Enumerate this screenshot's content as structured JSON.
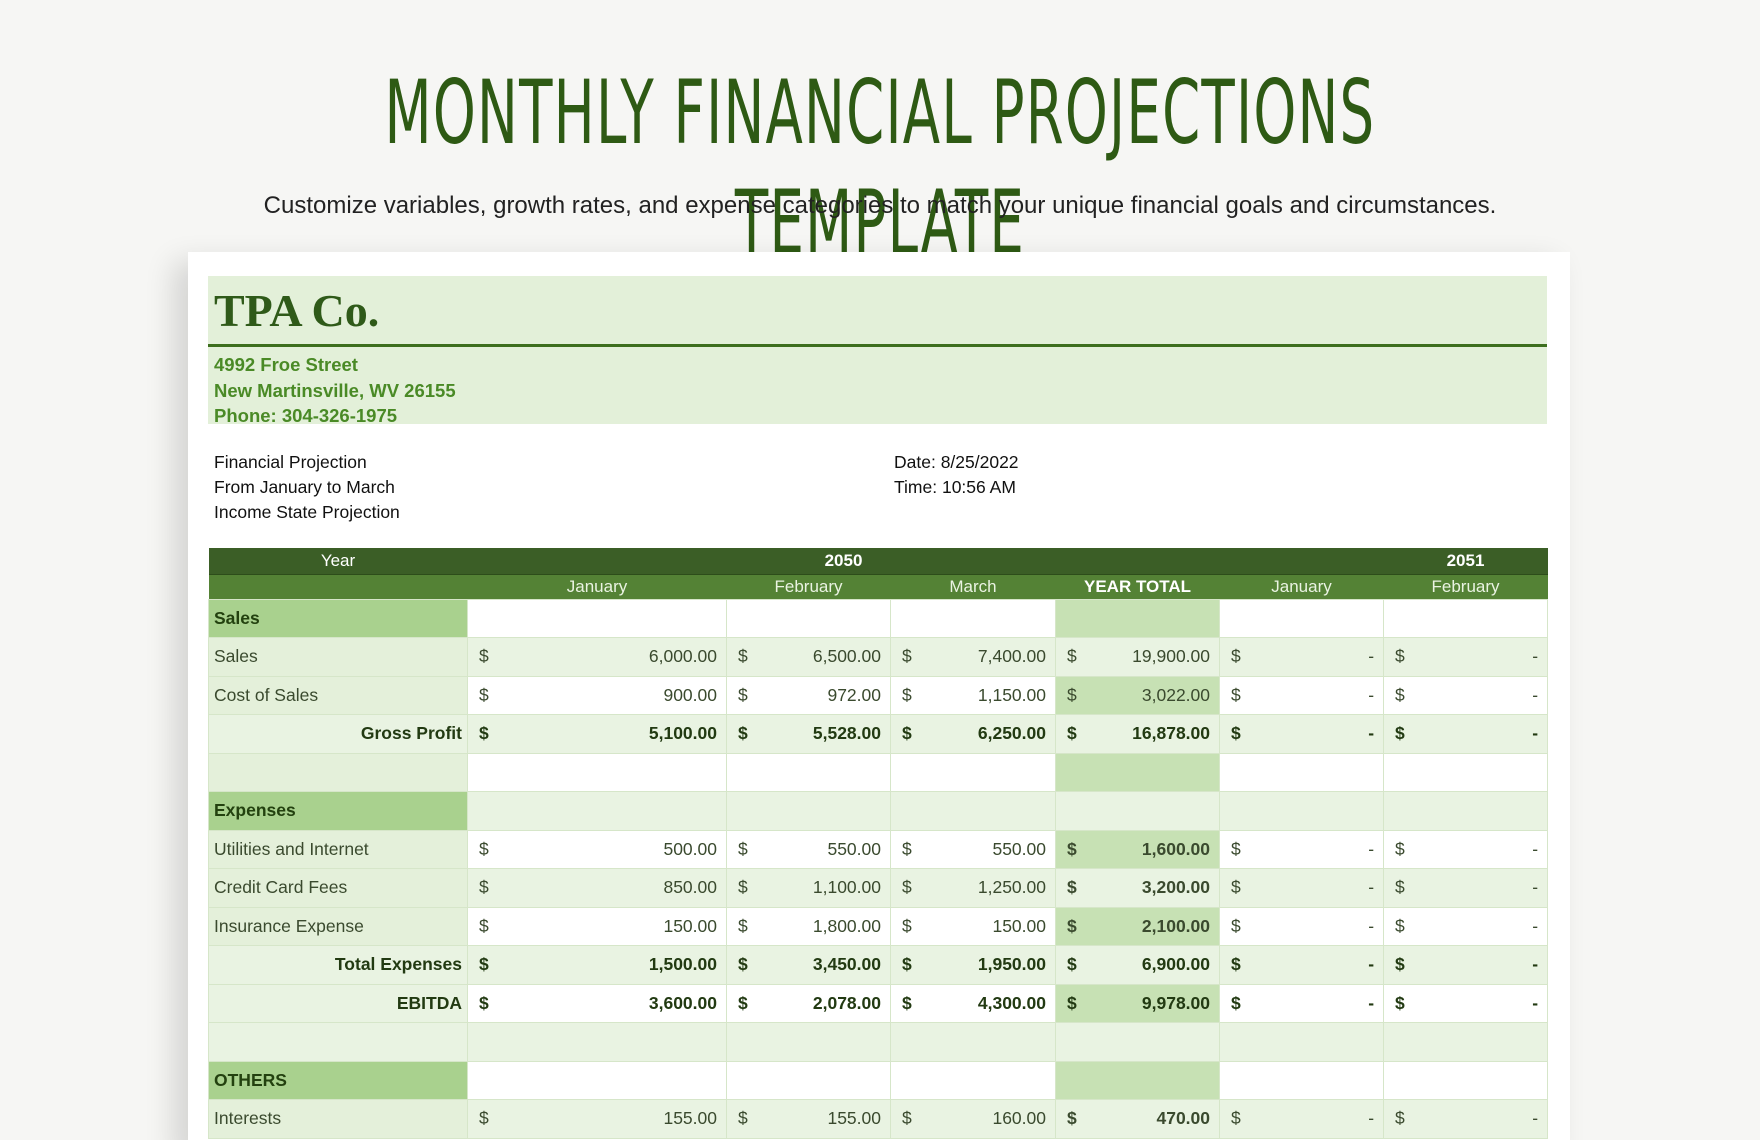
{
  "hero": {
    "title": "Monthly Financial Projections Template",
    "subtitle": "Customize variables, growth rates, and expense categories to match your unique financial goals and circumstances."
  },
  "company": {
    "name": "TPA Co.",
    "address1": "4992 Froe Street",
    "address2": "New Martinsville, WV 26155",
    "phone": "Phone: 304-326-1975"
  },
  "meta": {
    "line1": "Financial Projection",
    "line2": "From January to March",
    "line3": "Income State Projection",
    "date": "Date: 8/25/2022",
    "time": "Time: 10:56 AM"
  },
  "table": {
    "year_label": "Year",
    "year1": "2050",
    "year2": "2051",
    "months": [
      "January",
      "February",
      "March",
      "YEAR TOTAL",
      "January",
      "February"
    ],
    "currency": "$",
    "dash": "-",
    "sections": {
      "sales": "Sales",
      "expenses": "Expenses",
      "others": "OTHERS"
    },
    "rows": {
      "sales": {
        "label": "Sales",
        "values": [
          "6,000.00",
          "6,500.00",
          "7,400.00",
          "19,900.00",
          "-",
          "-"
        ]
      },
      "cost_of_sales": {
        "label": "Cost of Sales",
        "values": [
          "900.00",
          "972.00",
          "1,150.00",
          "3,022.00",
          "-",
          "-"
        ]
      },
      "gross_profit": {
        "label": "Gross Profit",
        "values": [
          "5,100.00",
          "5,528.00",
          "6,250.00",
          "16,878.00",
          "-",
          "-"
        ]
      },
      "utilities": {
        "label": "Utilities and Internet",
        "values": [
          "500.00",
          "550.00",
          "550.00",
          "1,600.00",
          "-",
          "-"
        ]
      },
      "credit_card": {
        "label": "Credit Card Fees",
        "values": [
          "850.00",
          "1,100.00",
          "1,250.00",
          "3,200.00",
          "-",
          "-"
        ]
      },
      "insurance": {
        "label": "Insurance Expense",
        "values": [
          "150.00",
          "1,800.00",
          "150.00",
          "2,100.00",
          "-",
          "-"
        ]
      },
      "total_expenses": {
        "label": "Total Expenses",
        "values": [
          "1,500.00",
          "3,450.00",
          "1,950.00",
          "6,900.00",
          "-",
          "-"
        ]
      },
      "ebitda": {
        "label": "EBITDA",
        "values": [
          "3,600.00",
          "2,078.00",
          "4,300.00",
          "9,978.00",
          "-",
          "-"
        ]
      },
      "interests": {
        "label": "Interests",
        "values": [
          "155.00",
          "155.00",
          "160.00",
          "470.00",
          "-",
          "-"
        ]
      }
    }
  }
}
